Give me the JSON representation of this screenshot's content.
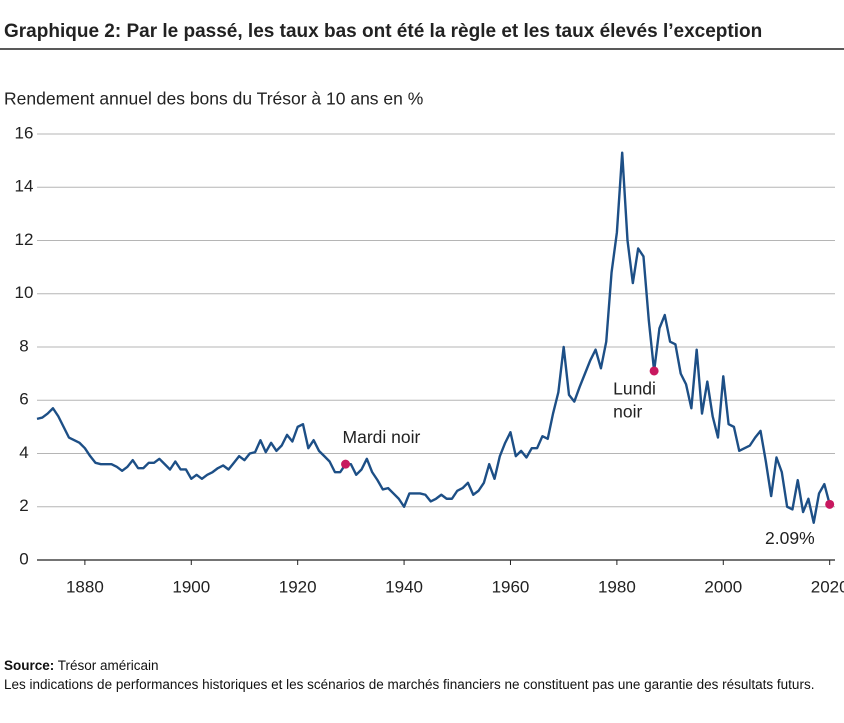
{
  "chart_data": {
    "type": "line",
    "title": "Graphique 2: Par le passé, les taux bas ont été la règle et les taux élevés l’exception",
    "subtitle": "Rendement annuel des bons du Trésor à 10 ans en %",
    "x": [
      1871,
      1872,
      1873,
      1874,
      1875,
      1876,
      1877,
      1878,
      1879,
      1880,
      1881,
      1882,
      1883,
      1884,
      1885,
      1886,
      1887,
      1888,
      1889,
      1890,
      1891,
      1892,
      1893,
      1894,
      1895,
      1896,
      1897,
      1898,
      1899,
      1900,
      1901,
      1902,
      1903,
      1904,
      1905,
      1906,
      1907,
      1908,
      1909,
      1910,
      1911,
      1912,
      1913,
      1914,
      1915,
      1916,
      1917,
      1918,
      1919,
      1920,
      1921,
      1922,
      1923,
      1924,
      1925,
      1926,
      1927,
      1928,
      1929,
      1930,
      1931,
      1932,
      1933,
      1934,
      1935,
      1936,
      1937,
      1938,
      1939,
      1940,
      1941,
      1942,
      1943,
      1944,
      1945,
      1946,
      1947,
      1948,
      1949,
      1950,
      1951,
      1952,
      1953,
      1954,
      1955,
      1956,
      1957,
      1958,
      1959,
      1960,
      1961,
      1962,
      1963,
      1964,
      1965,
      1966,
      1967,
      1968,
      1969,
      1970,
      1971,
      1972,
      1973,
      1974,
      1975,
      1976,
      1977,
      1978,
      1979,
      1980,
      1981,
      1982,
      1983,
      1984,
      1985,
      1986,
      1987,
      1988,
      1989,
      1990,
      1991,
      1992,
      1993,
      1994,
      1995,
      1996,
      1997,
      1998,
      1999,
      2000,
      2001,
      2002,
      2003,
      2004,
      2005,
      2006,
      2007,
      2008,
      2009,
      2010,
      2011,
      2012,
      2013,
      2014,
      2015,
      2016,
      2017,
      2018,
      2019,
      2020
    ],
    "values": [
      5.3,
      5.35,
      5.5,
      5.7,
      5.4,
      5.0,
      4.6,
      4.5,
      4.4,
      4.2,
      3.9,
      3.65,
      3.6,
      3.6,
      3.6,
      3.5,
      3.35,
      3.5,
      3.75,
      3.45,
      3.45,
      3.65,
      3.65,
      3.8,
      3.6,
      3.4,
      3.7,
      3.4,
      3.4,
      3.05,
      3.2,
      3.05,
      3.2,
      3.3,
      3.45,
      3.55,
      3.4,
      3.65,
      3.9,
      3.75,
      4.0,
      4.05,
      4.5,
      4.05,
      4.4,
      4.1,
      4.3,
      4.7,
      4.45,
      5.0,
      5.1,
      4.2,
      4.5,
      4.1,
      3.9,
      3.7,
      3.3,
      3.3,
      3.6,
      3.6,
      3.2,
      3.4,
      3.8,
      3.3,
      3.0,
      2.65,
      2.7,
      2.5,
      2.3,
      2.0,
      2.5,
      2.5,
      2.5,
      2.45,
      2.2,
      2.3,
      2.45,
      2.3,
      2.3,
      2.6,
      2.7,
      2.9,
      2.45,
      2.6,
      2.9,
      3.6,
      3.05,
      3.9,
      4.4,
      4.8,
      3.9,
      4.1,
      3.85,
      4.2,
      4.2,
      4.65,
      4.55,
      5.5,
      6.3,
      8.0,
      6.2,
      5.95,
      6.5,
      7.0,
      7.5,
      7.9,
      7.2,
      8.2,
      10.8,
      12.3,
      15.3,
      12.0,
      10.4,
      11.7,
      11.4,
      9.0,
      7.1,
      8.7,
      9.2,
      8.2,
      8.1,
      7.0,
      6.6,
      5.7,
      7.9,
      5.5,
      6.7,
      5.4,
      4.6,
      6.9,
      5.1,
      5.0,
      4.1,
      4.2,
      4.3,
      4.6,
      4.85,
      3.7,
      2.4,
      3.85,
      3.3,
      2.0,
      1.9,
      3.0,
      1.8,
      2.3,
      1.4,
      2.5,
      2.85,
      2.09
    ],
    "color": "#1d4f86",
    "xlim": [
      1871,
      2021
    ],
    "xticks": [
      1880,
      1900,
      1920,
      1940,
      1960,
      1980,
      2000,
      2020
    ],
    "ylim": [
      0,
      16
    ],
    "yticks": [
      0,
      2,
      4,
      6,
      8,
      10,
      12,
      14,
      16
    ],
    "grid": true,
    "annotations": [
      {
        "text": [
          "Mardi noir"
        ],
        "x": 1929,
        "y": 3.6,
        "color": "#c8185f"
      },
      {
        "text": [
          "Lundi",
          "noir"
        ],
        "x": 1987,
        "y": 7.1,
        "color": "#c8185f"
      },
      {
        "text": [
          "2.09%"
        ],
        "x": 2020,
        "y": 2.09,
        "color": "#c8185f"
      }
    ],
    "source_label": "Source:",
    "source": "Trésor américain",
    "note": "Les indications de performances historiques et les scénarios de marchés financiers ne constituent pas une garantie des résultats futurs."
  }
}
